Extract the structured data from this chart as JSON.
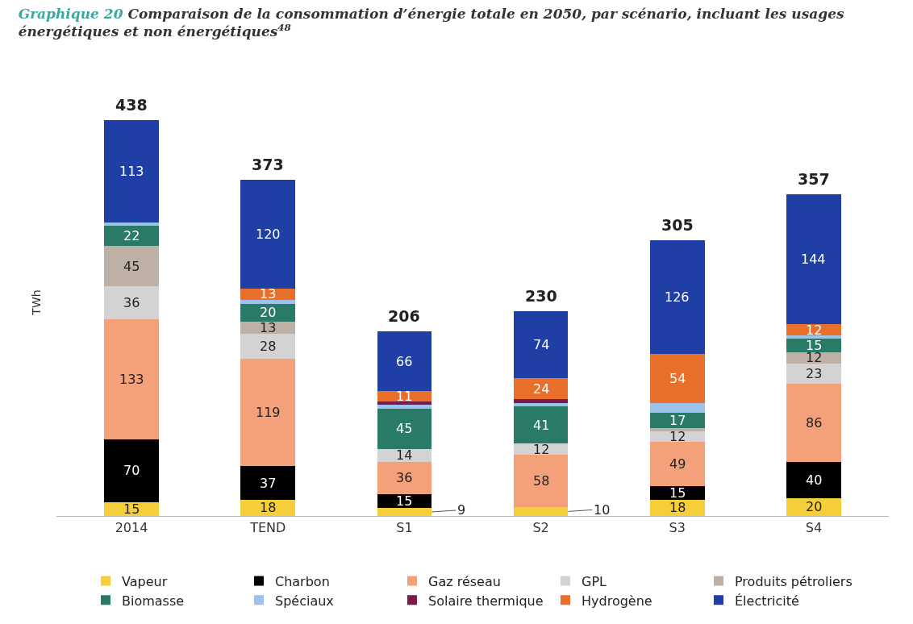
{
  "chart_data": {
    "type": "bar",
    "stacked": true,
    "title": "Graphique 20 Comparaison de la consommation d’énergie totale en 2050, par scénario, incluant les usages énergétiques et non énergétiques$^{48}$",
    "ylabel": "TWh",
    "categories": [
      "2014",
      "TEND",
      "S1",
      "S2",
      "S3",
      "S4"
    ],
    "series": [
      {
        "name": "Vapeur",
        "color": "#f5cf3a",
        "values": [
          15,
          18,
          9,
          10,
          18,
          20
        ],
        "value_labels": [
          "15",
          "18",
          "9",
          "10",
          "18",
          "20"
        ]
      },
      {
        "name": "Charbon",
        "color": "#000000",
        "values": [
          70,
          37,
          15,
          0,
          15,
          40
        ],
        "value_labels": [
          "70",
          "37",
          "15",
          null,
          "15",
          "40"
        ]
      },
      {
        "name": "Gaz réseau",
        "color": "#f4a07a",
        "values": [
          133,
          119,
          36,
          58,
          49,
          86
        ],
        "value_labels": [
          "133",
          "119",
          "36",
          "58",
          "49",
          "86"
        ]
      },
      {
        "name": "GPL",
        "color": "#d3d3d3",
        "values": [
          36,
          28,
          14,
          12,
          12,
          23
        ],
        "value_labels": [
          "36",
          "28",
          "14",
          "12",
          "12",
          "23"
        ]
      },
      {
        "name": "Produits pétroliers",
        "color": "#bfb0a6",
        "values": [
          45,
          13,
          0,
          0,
          3,
          12
        ],
        "value_labels": [
          "45",
          "13",
          null,
          null,
          null,
          "12"
        ]
      },
      {
        "name": "Biomasse",
        "color": "#2a7a68",
        "values": [
          22,
          20,
          45,
          41,
          17,
          15
        ],
        "value_labels": [
          "22",
          "20",
          "45",
          "41",
          "17",
          "15"
        ]
      },
      {
        "name": "Spéciaux",
        "color": "#9dc3ea",
        "values": [
          4,
          4,
          4,
          4,
          11,
          4
        ],
        "value_labels": [
          null,
          null,
          null,
          null,
          null,
          null
        ]
      },
      {
        "name": "Solaire thermique",
        "color": "#7a1a4e",
        "values": [
          0,
          0,
          4,
          4,
          0,
          0
        ],
        "value_labels": [
          null,
          null,
          null,
          null,
          null,
          null
        ]
      },
      {
        "name": "Hydrogène",
        "color": "#e8702a",
        "values": [
          0,
          13,
          11,
          24,
          54,
          12
        ],
        "value_labels": [
          null,
          "13",
          "11",
          "24",
          "54",
          "12"
        ]
      },
      {
        "name": "Électricité",
        "color": "#1f3fa6",
        "values": [
          113,
          120,
          66,
          74,
          126,
          144
        ],
        "value_labels": [
          "113",
          "120",
          "66",
          "74",
          "126",
          "144"
        ]
      }
    ],
    "totals": [
      "438",
      "373",
      "206",
      "230",
      "305",
      "357"
    ],
    "legend": "bottom"
  }
}
